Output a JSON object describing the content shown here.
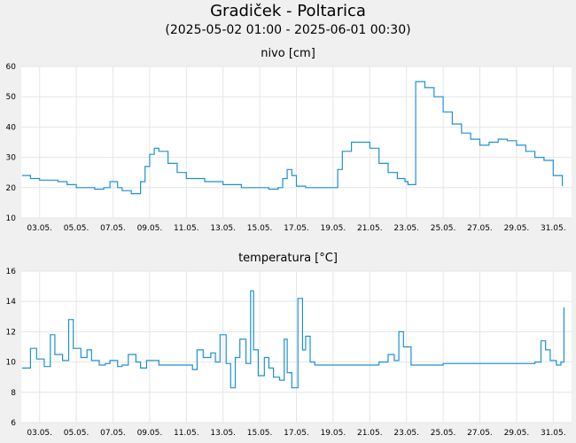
{
  "header": {
    "title": "Gradiček - Poltarica",
    "subtitle": "(2025-05-02 01:00 - 2025-06-01 00:30)"
  },
  "series_color": "#1e90d4",
  "chart_data": [
    {
      "type": "line",
      "title": "nivo [cm]",
      "xlabel": "",
      "ylabel": "",
      "x_start": "2025-05-02",
      "x_end": "2025-06-01",
      "x_ticks": [
        "03.05.",
        "05.05.",
        "07.05.",
        "09.05.",
        "11.05.",
        "13.05.",
        "15.05.",
        "17.05.",
        "19.05.",
        "21.05.",
        "23.05.",
        "25.05.",
        "27.05.",
        "29.05.",
        "31.05."
      ],
      "y_ticks": [
        "10",
        "20",
        "30",
        "40",
        "50",
        "60"
      ],
      "ylim": [
        10,
        60
      ],
      "grid": true,
      "series": [
        {
          "x": [
            "2025-05-02 01:00",
            "2025-05-02 12:00",
            "2025-05-03 00:00",
            "2025-05-04 00:00",
            "2025-05-04 12:00",
            "2025-05-05 00:00",
            "2025-05-06 00:00",
            "2025-05-06 12:00",
            "2025-05-06 20:00",
            "2025-05-07 06:00",
            "2025-05-07 12:00",
            "2025-05-07 20:00",
            "2025-05-08 00:00",
            "2025-05-08 06:00",
            "2025-05-08 12:00",
            "2025-05-08 18:00",
            "2025-05-09 00:00",
            "2025-05-09 06:00",
            "2025-05-09 12:00",
            "2025-05-10 00:00",
            "2025-05-10 12:00",
            "2025-05-11 00:00",
            "2025-05-12 00:00",
            "2025-05-12 12:00",
            "2025-05-13 00:00",
            "2025-05-14 00:00",
            "2025-05-14 12:00",
            "2025-05-15 00:00",
            "2025-05-15 12:00",
            "2025-05-16 00:00",
            "2025-05-16 06:00",
            "2025-05-16 12:00",
            "2025-05-16 18:00",
            "2025-05-17 00:00",
            "2025-05-17 12:00",
            "2025-05-18 00:00",
            "2025-05-18 12:00",
            "2025-05-18 18:00",
            "2025-05-19 00:00",
            "2025-05-19 06:00",
            "2025-05-19 12:00",
            "2025-05-20 00:00",
            "2025-05-20 12:00",
            "2025-05-21 00:00",
            "2025-05-21 12:00",
            "2025-05-22 00:00",
            "2025-05-22 12:00",
            "2025-05-22 22:00",
            "2025-05-23 02:00",
            "2025-05-23 06:00",
            "2025-05-23 12:00",
            "2025-05-24 00:00",
            "2025-05-24 12:00",
            "2025-05-25 00:00",
            "2025-05-25 12:00",
            "2025-05-26 00:00",
            "2025-05-26 12:00",
            "2025-05-27 00:00",
            "2025-05-27 12:00",
            "2025-05-28 00:00",
            "2025-05-28 12:00",
            "2025-05-29 00:00",
            "2025-05-29 12:00",
            "2025-05-30 00:00",
            "2025-05-30 12:00",
            "2025-05-31 00:00",
            "2025-05-31 12:00"
          ],
          "y": [
            24,
            23,
            22.5,
            22,
            21,
            20,
            19.5,
            20,
            22,
            20,
            19,
            19,
            18,
            18,
            22,
            27,
            31,
            33,
            32,
            28,
            25,
            23,
            22,
            22,
            21,
            20,
            20,
            20,
            19.5,
            20,
            23,
            26,
            24,
            20.5,
            20,
            20,
            20,
            20,
            20,
            26,
            32,
            35,
            35,
            33,
            28,
            25,
            23,
            22,
            21,
            21,
            55,
            53,
            50,
            45,
            41,
            38,
            36,
            34,
            35,
            36,
            35.5,
            34,
            32,
            30,
            29,
            24,
            20.5
          ]
        }
      ]
    },
    {
      "type": "line",
      "title": "temperatura [°C]",
      "xlabel": "",
      "ylabel": "",
      "x_start": "2025-05-02",
      "x_end": "2025-06-01",
      "x_ticks": [
        "03.05.",
        "05.05.",
        "07.05.",
        "09.05.",
        "11.05.",
        "13.05.",
        "15.05.",
        "17.05.",
        "19.05.",
        "21.05.",
        "23.05.",
        "25.05.",
        "27.05.",
        "29.05.",
        "31.05."
      ],
      "y_ticks": [
        "6",
        "8",
        "10",
        "12",
        "14",
        "16"
      ],
      "ylim": [
        6,
        16
      ],
      "grid": true,
      "series": [
        {
          "x": [
            "2025-05-02 01:00",
            "2025-05-02 12:00",
            "2025-05-02 20:00",
            "2025-05-03 06:00",
            "2025-05-03 14:00",
            "2025-05-03 20:00",
            "2025-05-04 06:00",
            "2025-05-04 14:00",
            "2025-05-04 20:00",
            "2025-05-05 06:00",
            "2025-05-05 14:00",
            "2025-05-05 20:00",
            "2025-05-06 06:00",
            "2025-05-06 14:00",
            "2025-05-06 20:00",
            "2025-05-07 06:00",
            "2025-05-07 12:00",
            "2025-05-07 20:00",
            "2025-05-08 06:00",
            "2025-05-08 12:00",
            "2025-05-08 20:00",
            "2025-05-09 12:00",
            "2025-05-10 00:00",
            "2025-05-10 14:00",
            "2025-05-11 00:00",
            "2025-05-11 08:00",
            "2025-05-11 14:00",
            "2025-05-11 22:00",
            "2025-05-12 08:00",
            "2025-05-12 14:00",
            "2025-05-12 20:00",
            "2025-05-13 04:00",
            "2025-05-13 10:00",
            "2025-05-13 16:00",
            "2025-05-13 22:00",
            "2025-05-14 06:00",
            "2025-05-14 12:00",
            "2025-05-14 16:00",
            "2025-05-14 22:00",
            "2025-05-15 06:00",
            "2025-05-15 12:00",
            "2025-05-15 18:00",
            "2025-05-16 02:00",
            "2025-05-16 08:00",
            "2025-05-16 12:00",
            "2025-05-16 18:00",
            "2025-05-17 02:00",
            "2025-05-17 08:00",
            "2025-05-17 12:00",
            "2025-05-17 18:00",
            "2025-05-18 00:00",
            "2025-05-18 04:00",
            "2025-05-18 08:00",
            "2025-05-18 14:00",
            "2025-05-18 20:00",
            "2025-05-19 02:00",
            "2025-05-19 12:00",
            "2025-05-20 00:00",
            "2025-05-21 00:00",
            "2025-05-21 12:00",
            "2025-05-22 00:00",
            "2025-05-22 08:00",
            "2025-05-22 14:00",
            "2025-05-22 20:00",
            "2025-05-23 06:00",
            "2025-05-23 14:00",
            "2025-05-23 20:00",
            "2025-05-24 06:00",
            "2025-05-24 14:00",
            "2025-05-25 00:00",
            "2025-05-26 00:00",
            "2025-05-27 00:00",
            "2025-05-28 00:00",
            "2025-05-29 00:00",
            "2025-05-29 12:00",
            "2025-05-30 00:00",
            "2025-05-30 08:00",
            "2025-05-30 14:00",
            "2025-05-30 20:00",
            "2025-05-31 04:00",
            "2025-05-31 10:00",
            "2025-05-31 14:00"
          ],
          "y": [
            9.6,
            10.9,
            10.2,
            9.7,
            11.8,
            10.5,
            10.1,
            12.8,
            10.9,
            10.3,
            10.8,
            10.1,
            9.8,
            9.9,
            10.1,
            9.7,
            9.8,
            10.5,
            10,
            9.6,
            10.1,
            9.8,
            9.8,
            9.8,
            9.8,
            9.5,
            10.8,
            10.3,
            10.6,
            10,
            11.8,
            9.9,
            8.3,
            10.3,
            11.5,
            9.9,
            14.7,
            10.8,
            9.1,
            10.3,
            9.6,
            9,
            8.8,
            11.5,
            9.3,
            8.3,
            14.2,
            10.8,
            11.7,
            10,
            9.8,
            9.8,
            9.8,
            9.8,
            9.8,
            9.8,
            9.8,
            9.8,
            9.8,
            10,
            10.5,
            10.1,
            12,
            11,
            9.8,
            9.8,
            9.8,
            9.8,
            9.8,
            9.9,
            9.9,
            9.9,
            9.9,
            9.9,
            9.9,
            10,
            11.4,
            10.8,
            10.1,
            9.8,
            10,
            13.6
          ]
        }
      ]
    }
  ]
}
